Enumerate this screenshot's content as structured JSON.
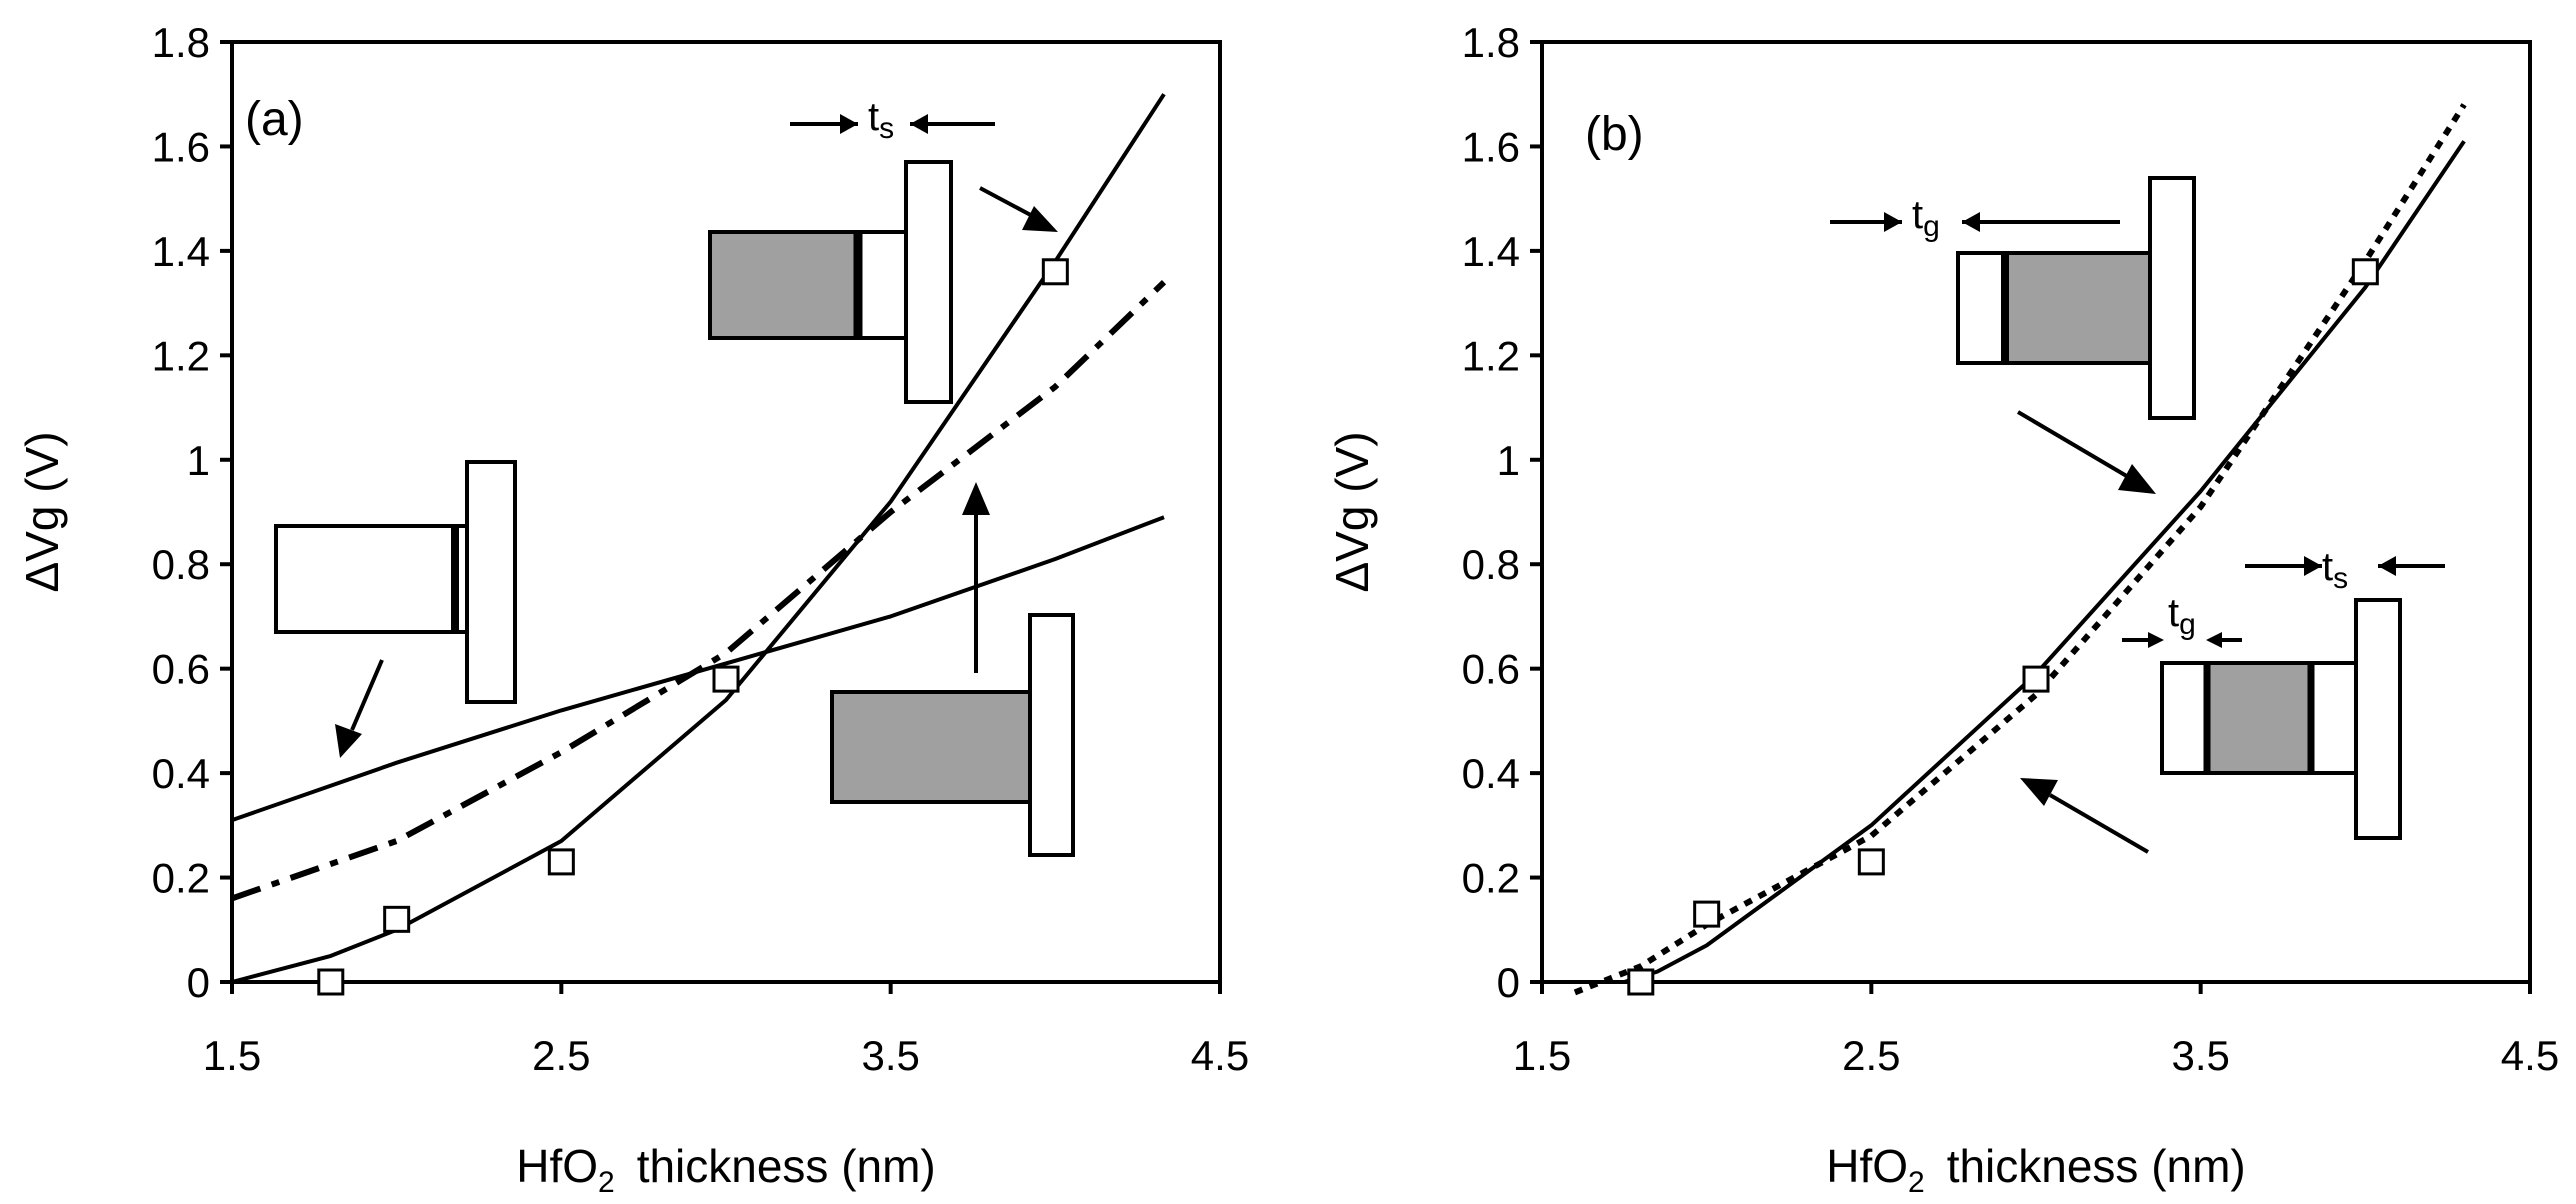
{
  "chart_data": [
    {
      "type": "line",
      "panel_label": "(a)",
      "xlabel": "thickness (nm)",
      "xlabel_prefix": "HfO",
      "xlabel_sub": "2",
      "ylabel": "ΔVg (V)",
      "xlim": [
        1.5,
        4.5
      ],
      "ylim": [
        0,
        1.8
      ],
      "xticks": [
        "1.5",
        "2.5",
        "3.5",
        "4.5"
      ],
      "yticks": [
        "0",
        "0.2",
        "0.4",
        "0.6",
        "0.8",
        "1",
        "1.2",
        "1.4",
        "1.6",
        "1.8"
      ],
      "series": [
        {
          "name": "steep",
          "style": "solid",
          "x": [
            1.5,
            1.8,
            2.0,
            2.5,
            3.0,
            3.5,
            4.0,
            4.33
          ],
          "y": [
            0.0,
            0.05,
            0.1,
            0.27,
            0.54,
            0.92,
            1.38,
            1.7
          ]
        },
        {
          "name": "dash-dot",
          "style": "dashdot",
          "x": [
            1.5,
            2.0,
            2.5,
            3.0,
            3.5,
            4.0,
            4.33
          ],
          "y": [
            0.16,
            0.27,
            0.44,
            0.63,
            0.9,
            1.14,
            1.34
          ]
        },
        {
          "name": "shallow",
          "style": "solid",
          "x": [
            1.5,
            2.0,
            2.5,
            3.0,
            3.5,
            4.0,
            4.33
          ],
          "y": [
            0.31,
            0.42,
            0.52,
            0.61,
            0.7,
            0.81,
            0.89
          ]
        }
      ],
      "markers": {
        "x": [
          1.8,
          2.0,
          2.5,
          3.0,
          4.0
        ],
        "y": [
          0.0,
          0.12,
          0.23,
          0.58,
          1.36
        ]
      },
      "annotations": [
        {
          "text": "t",
          "sub": "s"
        }
      ]
    },
    {
      "type": "line",
      "panel_label": "(b)",
      "xlabel": "thickness (nm)",
      "xlabel_prefix": "HfO",
      "xlabel_sub": "2",
      "ylabel": "ΔVg (V)",
      "xlim": [
        1.5,
        4.5
      ],
      "ylim": [
        0,
        1.8
      ],
      "xticks": [
        "1.5",
        "2.5",
        "3.5",
        "4.5"
      ],
      "yticks": [
        "0",
        "0.2",
        "0.4",
        "0.6",
        "0.8",
        "1",
        "1.2",
        "1.4",
        "1.6",
        "1.8"
      ],
      "series": [
        {
          "name": "solid",
          "style": "solid",
          "x": [
            1.75,
            1.85,
            2.0,
            2.5,
            3.0,
            3.5,
            4.0,
            4.3
          ],
          "y": [
            0.0,
            0.02,
            0.07,
            0.3,
            0.59,
            0.94,
            1.33,
            1.61
          ]
        },
        {
          "name": "dotted",
          "style": "dotted",
          "x": [
            1.6,
            1.8,
            2.0,
            2.5,
            3.0,
            3.5,
            4.0,
            4.3
          ],
          "y": [
            -0.02,
            0.03,
            0.11,
            0.28,
            0.55,
            0.91,
            1.38,
            1.68
          ]
        }
      ],
      "markers": {
        "x": [
          1.8,
          2.0,
          2.5,
          3.0,
          4.0
        ],
        "y": [
          0.0,
          0.13,
          0.23,
          0.58,
          1.36
        ]
      },
      "annotations": [
        {
          "text": "t",
          "sub": "g"
        },
        {
          "text": "t",
          "sub": "g"
        },
        {
          "text": "t",
          "sub": "s"
        }
      ]
    }
  ]
}
